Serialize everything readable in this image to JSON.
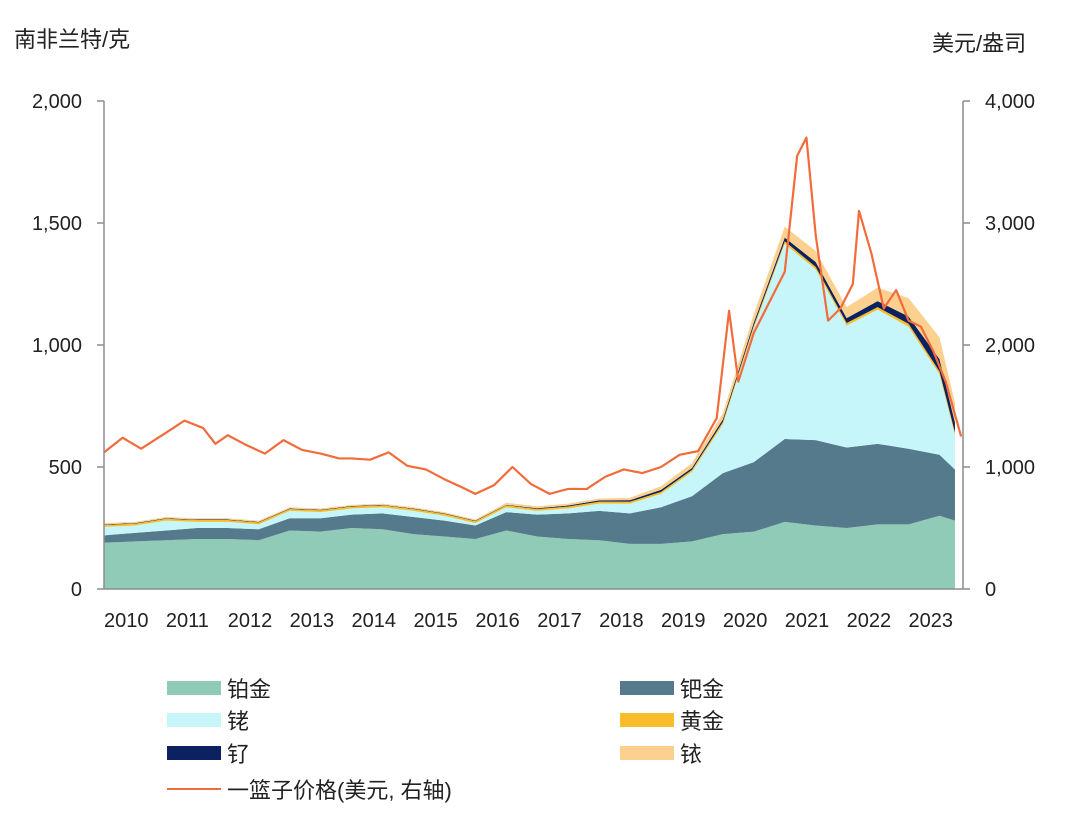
{
  "left_axis_unit": "南非兰特/克",
  "right_axis_unit": "美元/盎司",
  "colors": {
    "platinum": "#8fcbb6",
    "palladium": "#557a8b",
    "rhodium": "#c6f6fa",
    "gold": "#f7bd2b",
    "ruthenium": "#0c2160",
    "iridium": "#fcd08e",
    "basket": "#f26b3a",
    "axis": "#8c8c8c"
  },
  "legend": [
    {
      "key": "platinum",
      "label": "铂金",
      "type": "area"
    },
    {
      "key": "palladium",
      "label": "钯金",
      "type": "area"
    },
    {
      "key": "rhodium",
      "label": "铑",
      "type": "area"
    },
    {
      "key": "gold",
      "label": "黄金",
      "type": "area"
    },
    {
      "key": "ruthenium",
      "label": "钌",
      "type": "area"
    },
    {
      "key": "iridium",
      "label": "铱",
      "type": "area"
    },
    {
      "key": "basket",
      "label": "一篮子价格(美元, 右轴)",
      "type": "line"
    }
  ],
  "chart_data": {
    "type": "area",
    "stacked": true,
    "x": [
      2010.0,
      2010.5,
      2011.0,
      2011.5,
      2012.0,
      2012.5,
      2013.0,
      2013.5,
      2014.0,
      2014.5,
      2015.0,
      2015.5,
      2016.0,
      2016.5,
      2017.0,
      2017.5,
      2018.0,
      2018.5,
      2019.0,
      2019.5,
      2020.0,
      2020.5,
      2021.0,
      2021.5,
      2022.0,
      2022.5,
      2023.0,
      2023.5,
      2023.75
    ],
    "x_ticks": [
      "2010",
      "2011",
      "2012",
      "2013",
      "2014",
      "2015",
      "2016",
      "2017",
      "2018",
      "2019",
      "2020",
      "2021",
      "2022",
      "2023"
    ],
    "x_range": [
      2010,
      2023.88
    ],
    "y_left_label": "南非兰特/克",
    "y_left_range": [
      0,
      2000
    ],
    "y_left_ticks": [
      "0",
      "500",
      "1,000",
      "1,500",
      "2,000"
    ],
    "y_right_label": "美元/盎司",
    "y_right_range": [
      0,
      4000
    ],
    "y_right_ticks": [
      "0",
      "1,000",
      "2,000",
      "3,000",
      "4,000"
    ],
    "grid": false,
    "legend_position": "bottom",
    "series": [
      {
        "name": "铂金",
        "key": "platinum",
        "axis": "left",
        "values": [
          190,
          195,
          200,
          205,
          205,
          200,
          240,
          235,
          250,
          245,
          225,
          215,
          205,
          240,
          215,
          205,
          200,
          185,
          185,
          195,
          225,
          235,
          275,
          260,
          250,
          265,
          265,
          300,
          280
        ]
      },
      {
        "name": "钯金",
        "key": "palladium",
        "axis": "left",
        "values": [
          30,
          35,
          40,
          45,
          45,
          45,
          50,
          55,
          55,
          65,
          70,
          65,
          55,
          75,
          90,
          105,
          120,
          125,
          150,
          185,
          250,
          285,
          340,
          350,
          330,
          330,
          310,
          250,
          210
        ]
      },
      {
        "name": "铑",
        "key": "rhodium",
        "axis": "left",
        "values": [
          35,
          30,
          40,
          25,
          25,
          20,
          30,
          25,
          25,
          25,
          25,
          20,
          10,
          20,
          15,
          20,
          30,
          40,
          55,
          100,
          200,
          550,
          800,
          700,
          500,
          550,
          500,
          330,
          140
        ]
      },
      {
        "name": "黄金",
        "key": "gold",
        "axis": "left",
        "values": [
          8,
          8,
          8,
          8,
          8,
          8,
          8,
          8,
          8,
          8,
          8,
          8,
          8,
          8,
          8,
          8,
          8,
          8,
          8,
          8,
          10,
          10,
          10,
          10,
          10,
          10,
          12,
          12,
          12
        ]
      },
      {
        "name": "钌",
        "key": "ruthenium",
        "axis": "left",
        "values": [
          2,
          2,
          2,
          2,
          2,
          2,
          2,
          2,
          2,
          2,
          2,
          2,
          2,
          2,
          3,
          4,
          5,
          6,
          8,
          8,
          10,
          12,
          15,
          20,
          20,
          25,
          30,
          50,
          40
        ]
      },
      {
        "name": "铱",
        "key": "iridium",
        "axis": "left",
        "values": [
          5,
          5,
          5,
          5,
          5,
          5,
          5,
          5,
          5,
          5,
          5,
          5,
          5,
          8,
          8,
          8,
          8,
          10,
          15,
          20,
          25,
          35,
          45,
          45,
          45,
          55,
          75,
          90,
          80
        ]
      },
      {
        "name": "一篮子价格(美元, 右轴)",
        "key": "basket",
        "axis": "right",
        "type": "line",
        "x": [
          2010.0,
          2010.3,
          2010.6,
          2011.0,
          2011.3,
          2011.6,
          2011.8,
          2012.0,
          2012.3,
          2012.6,
          2012.9,
          2013.2,
          2013.5,
          2013.8,
          2014.0,
          2014.3,
          2014.6,
          2014.9,
          2015.2,
          2015.5,
          2015.8,
          2016.0,
          2016.3,
          2016.6,
          2016.9,
          2017.2,
          2017.5,
          2017.8,
          2018.1,
          2018.4,
          2018.7,
          2019.0,
          2019.3,
          2019.6,
          2019.9,
          2020.1,
          2020.25,
          2020.35,
          2020.5,
          2020.7,
          2021.0,
          2021.2,
          2021.35,
          2021.5,
          2021.7,
          2021.9,
          2022.1,
          2022.2,
          2022.4,
          2022.6,
          2022.8,
          2023.0,
          2023.2,
          2023.4,
          2023.6,
          2023.85
        ],
        "values": [
          1120,
          1240,
          1150,
          1280,
          1380,
          1320,
          1190,
          1260,
          1180,
          1110,
          1220,
          1140,
          1110,
          1070,
          1070,
          1060,
          1120,
          1010,
          980,
          900,
          830,
          780,
          850,
          1000,
          860,
          780,
          820,
          820,
          920,
          980,
          950,
          1000,
          1100,
          1130,
          1400,
          2280,
          1700,
          1860,
          2100,
          2300,
          2600,
          3550,
          3700,
          2900,
          2200,
          2300,
          2500,
          3100,
          2750,
          2300,
          2450,
          2200,
          2150,
          1950,
          1700,
          1250
        ]
      }
    ]
  }
}
